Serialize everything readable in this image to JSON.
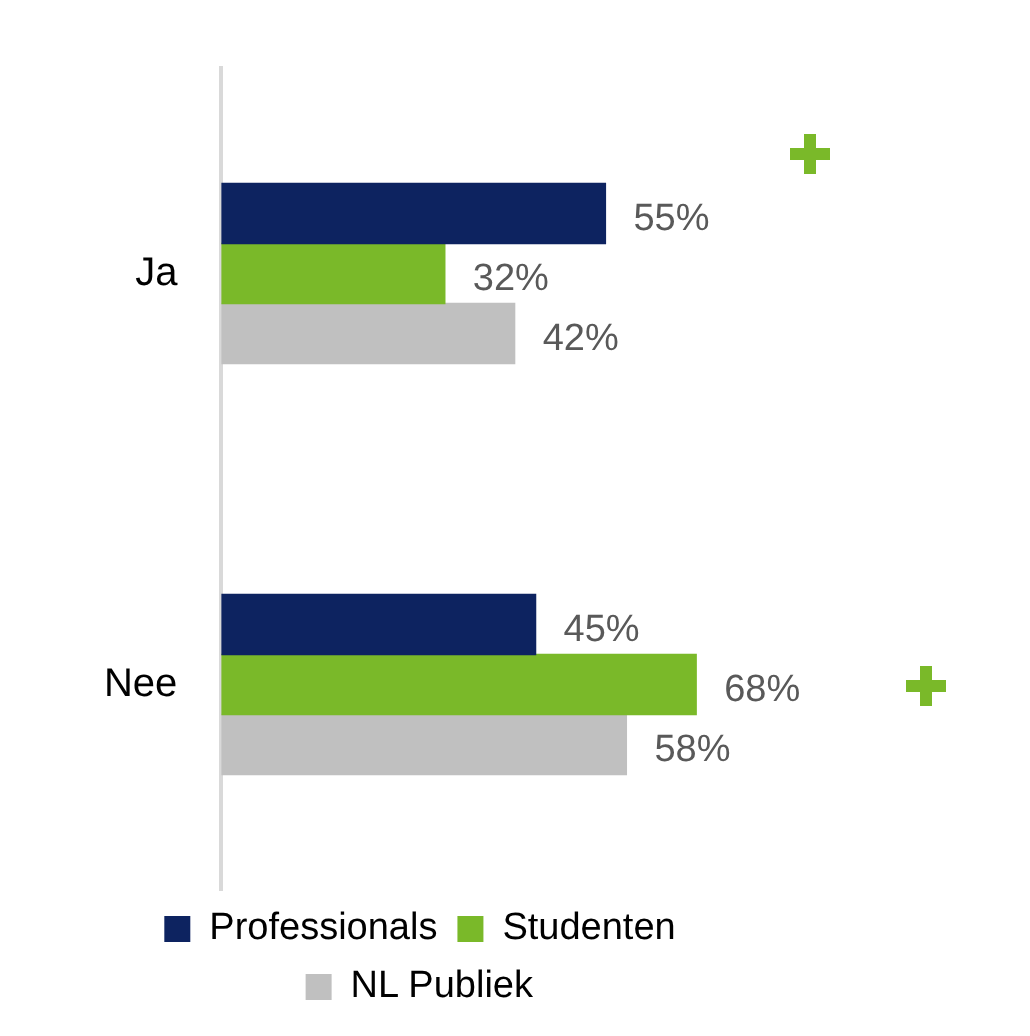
{
  "chart_data": {
    "type": "bar",
    "orientation": "horizontal",
    "categories": [
      "Ja",
      "Nee"
    ],
    "tick_labels": "y",
    "legend": "bottom",
    "series": [
      {
        "name": "Professionals",
        "color": "#0d2360",
        "values": [
          55,
          45
        ],
        "value_labels": [
          "55%",
          "45%"
        ]
      },
      {
        "name": "Studenten",
        "color": "#7ab929",
        "values": [
          32,
          68
        ],
        "value_labels": [
          "32%",
          "68%"
        ]
      },
      {
        "name": "NL Publiek",
        "color": "#c0c0c0",
        "values": [
          42,
          58
        ],
        "value_labels": [
          "42%",
          "58%"
        ]
      }
    ]
  }
}
